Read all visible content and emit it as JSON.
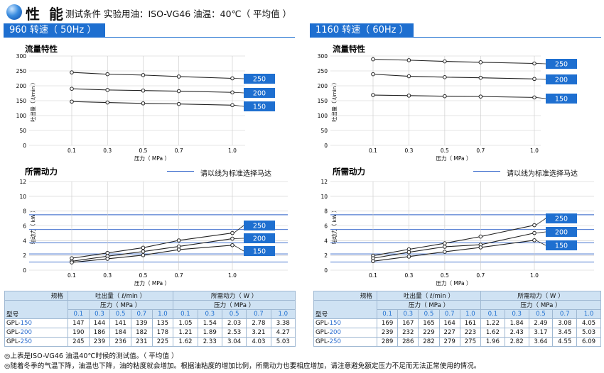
{
  "header": {
    "title": "性 能",
    "subtitle": "测试条件 实验用油：ISO-VG46 油温：40℃（ 平均值 ）"
  },
  "tabs": [
    {
      "label": "960 转速（ 50Hz ）"
    },
    {
      "label": "1160 转速（ 60Hz ）"
    }
  ],
  "legend_note": "请以线为标准选择马达",
  "colors": {
    "accent": "#1e6fd0",
    "guide_line": "#2a5fc8",
    "table_header": "#cfe2f3"
  },
  "chart_data": [
    {
      "type": "line",
      "title": "流量特性",
      "panel": "960 转速（ 50Hz ）",
      "xlabel": "压力（ MPa ）",
      "ylabel": "吐出量（ ℓ/min ）",
      "x": [
        0.1,
        0.3,
        0.5,
        0.7,
        1.0
      ],
      "xticks": [
        "0.1",
        "0.3",
        "0.5",
        "0.7",
        "1.0"
      ],
      "ylim": [
        0,
        300
      ],
      "yticks": [
        0,
        50,
        100,
        150,
        200,
        250,
        300
      ],
      "series": [
        {
          "name": "250",
          "values": [
            245,
            239,
            236,
            231,
            225
          ]
        },
        {
          "name": "200",
          "values": [
            190,
            186,
            184,
            182,
            178
          ]
        },
        {
          "name": "150",
          "values": [
            147,
            144,
            141,
            139,
            135
          ]
        }
      ]
    },
    {
      "type": "line",
      "title": "所需动力",
      "panel": "960 转速（ 50Hz ）",
      "xlabel": "压力（ MPa ）",
      "ylabel": "轴动力（ kW ）",
      "x": [
        0.1,
        0.3,
        0.5,
        0.7,
        1.0
      ],
      "xticks": [
        "0.1",
        "0.3",
        "0.5",
        "0.7",
        "1.0"
      ],
      "ylim": [
        0,
        12
      ],
      "yticks": [
        0,
        2,
        4,
        6,
        8,
        10,
        12
      ],
      "guide_lines": [
        1.1,
        2.2,
        3.7,
        5.5,
        7.5
      ],
      "series": [
        {
          "name": "250",
          "values": [
            1.62,
            2.33,
            3.04,
            4.03,
            5.03
          ]
        },
        {
          "name": "200",
          "values": [
            1.21,
            1.89,
            2.53,
            3.21,
            4.27
          ]
        },
        {
          "name": "150",
          "values": [
            1.05,
            1.54,
            2.03,
            2.78,
            3.38
          ]
        }
      ]
    },
    {
      "type": "line",
      "title": "流量特性",
      "panel": "1160 转速（ 60Hz ）",
      "xlabel": "压力（ MPa ）",
      "ylabel": "吐出量（ ℓ/min ）",
      "x": [
        0.1,
        0.3,
        0.5,
        0.7,
        1.0
      ],
      "xticks": [
        "0.1",
        "0.3",
        "0.5",
        "0.7",
        "1.0"
      ],
      "ylim": [
        0,
        300
      ],
      "yticks": [
        0,
        50,
        100,
        150,
        200,
        250,
        300
      ],
      "series": [
        {
          "name": "250",
          "values": [
            289,
            286,
            282,
            279,
            275
          ]
        },
        {
          "name": "200",
          "values": [
            239,
            232,
            229,
            227,
            223
          ]
        },
        {
          "name": "150",
          "values": [
            169,
            167,
            165,
            164,
            161
          ]
        }
      ]
    },
    {
      "type": "line",
      "title": "所需动力",
      "panel": "1160 转速（ 60Hz ）",
      "xlabel": "压力（ MPa ）",
      "ylabel": "轴动力（ kW ）",
      "x": [
        0.1,
        0.3,
        0.5,
        0.7,
        1.0
      ],
      "xticks": [
        "0.1",
        "0.3",
        "0.5",
        "0.7",
        "1.0"
      ],
      "ylim": [
        0,
        12
      ],
      "yticks": [
        0,
        2,
        4,
        6,
        8,
        10,
        12
      ],
      "guide_lines": [
        1.1,
        2.2,
        3.7,
        5.5,
        7.5
      ],
      "series": [
        {
          "name": "250",
          "values": [
            1.96,
            2.82,
            3.64,
            4.55,
            6.09
          ]
        },
        {
          "name": "200",
          "values": [
            1.62,
            2.43,
            3.17,
            3.45,
            5.03
          ]
        },
        {
          "name": "150",
          "values": [
            1.22,
            1.84,
            2.49,
            3.08,
            4.05
          ]
        }
      ]
    }
  ],
  "tables": [
    {
      "corner_top": "规格",
      "corner_bottom": "型号",
      "group1": "吐出量（ ℓ/min ）",
      "group2": "所需动力（ W ）",
      "sub1": "压力（ MPa ）",
      "sub2": "压力（ MPa ）",
      "pressures": [
        "0.1",
        "0.3",
        "0.5",
        "0.7",
        "1.0"
      ],
      "rows": [
        {
          "prefix": "GPL-",
          "size": "150",
          "flow": [
            "147",
            "144",
            "141",
            "139",
            "135"
          ],
          "power": [
            "1.05",
            "1.54",
            "2.03",
            "2.78",
            "3.38"
          ]
        },
        {
          "prefix": "GPL-",
          "size": "200",
          "flow": [
            "190",
            "186",
            "184",
            "182",
            "178"
          ],
          "power": [
            "1.21",
            "1.89",
            "2.53",
            "3.21",
            "4.27"
          ]
        },
        {
          "prefix": "GPL-",
          "size": "250",
          "flow": [
            "245",
            "239",
            "236",
            "231",
            "225"
          ],
          "power": [
            "1.62",
            "2.33",
            "3.04",
            "4.03",
            "5.03"
          ]
        }
      ]
    },
    {
      "corner_top": "规格",
      "corner_bottom": "型号",
      "group1": "吐出量（ ℓ/min ）",
      "group2": "所需动力（ W ）",
      "sub1": "压力（ MPa ）",
      "sub2": "压力（ MPa ）",
      "pressures": [
        "0.1",
        "0.3",
        "0.5",
        "0.7",
        "1.0"
      ],
      "rows": [
        {
          "prefix": "GPL-",
          "size": "150",
          "flow": [
            "169",
            "167",
            "165",
            "164",
            "161"
          ],
          "power": [
            "1.22",
            "1.84",
            "2.49",
            "3.08",
            "4.05"
          ]
        },
        {
          "prefix": "GPL-",
          "size": "200",
          "flow": [
            "239",
            "232",
            "229",
            "227",
            "223"
          ],
          "power": [
            "1.62",
            "2.43",
            "3.17",
            "3.45",
            "5.03"
          ]
        },
        {
          "prefix": "GPL-",
          "size": "250",
          "flow": [
            "289",
            "286",
            "282",
            "279",
            "275"
          ],
          "power": [
            "1.96",
            "2.82",
            "3.64",
            "4.55",
            "6.09"
          ]
        }
      ]
    }
  ],
  "notes": [
    "◎上表是ISO-VG46 油温40℃时候的测试值。（ 平均值 ）",
    "◎随着冬季的气温下降，油温也下降，油的粘度就会增加。根据油粘度的增加比例，所需动力也要相应增加，请注意避免额定压力不足而无法正常使用的情况。"
  ]
}
